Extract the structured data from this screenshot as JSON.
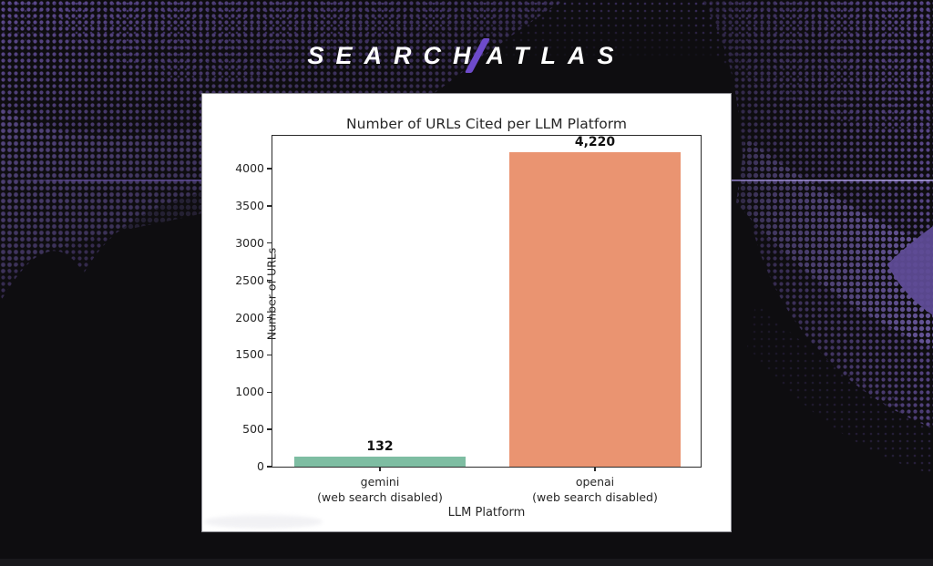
{
  "logo": {
    "word1": "SEARCH",
    "word2": "ATLAS",
    "slash_color": "#6e4bcb"
  },
  "colors": {
    "background": "#0e0d10",
    "dot_purple": "#5d4a8e",
    "dot_purple_dim": "#4a3a78",
    "dot_purple_bright": "#7663b0",
    "solid_purple_band": "#5e4b95",
    "streak_line": "#8d7cc9",
    "card_background": "#ffffff",
    "axis_color": "#2a2a2a",
    "text_color": "#262626"
  },
  "chart_data": {
    "type": "bar",
    "title": "Number of URLs Cited per LLM Platform",
    "xlabel": "LLM Platform",
    "ylabel": "Number of URLs",
    "categories": [
      [
        "gemini",
        "(web search disabled)"
      ],
      [
        "openai",
        "(web search disabled)"
      ]
    ],
    "values": [
      132,
      4220
    ],
    "value_labels": [
      "132",
      "4,220"
    ],
    "bar_colors": [
      "#7ebda2",
      "#ea9471"
    ],
    "yticks": [
      0,
      500,
      1000,
      1500,
      2000,
      2500,
      3000,
      3500,
      4000
    ],
    "ylim": [
      0,
      4465
    ],
    "bar_width_fraction": 0.8,
    "grid": false,
    "legend_position": "none"
  }
}
